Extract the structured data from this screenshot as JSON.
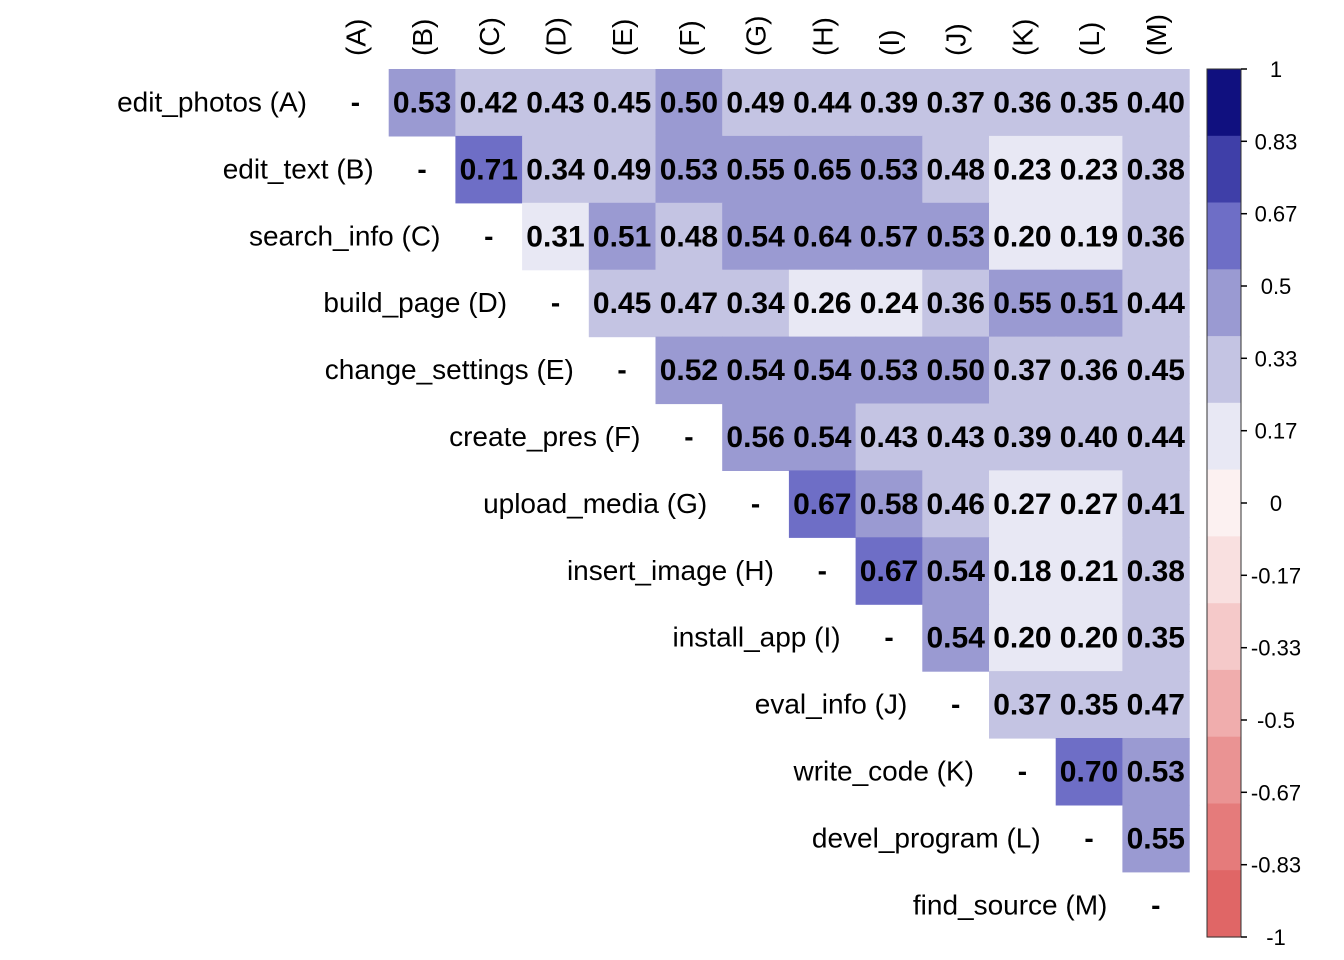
{
  "chart_data": {
    "type": "heatmap",
    "title": "",
    "row_labels": [
      "edit_photos (A)",
      "edit_text (B)",
      "search_info (C)",
      "build_page (D)",
      "change_settings (E)",
      "create_pres (F)",
      "upload_media (G)",
      "insert_image (H)",
      "install_app (I)",
      "eval_info (J)",
      "write_code (K)",
      "devel_program (L)",
      "find_source (M)"
    ],
    "col_labels": [
      "(A)",
      "(B)",
      "(C)",
      "(D)",
      "(E)",
      "(F)",
      "(G)",
      "(H)",
      "(I)",
      "(J)",
      "(K)",
      "(L)",
      "(M)"
    ],
    "diagonal_label": "-",
    "matrix": [
      [
        null,
        0.53,
        0.42,
        0.43,
        0.45,
        0.5,
        0.49,
        0.44,
        0.39,
        0.37,
        0.36,
        0.35,
        0.4
      ],
      [
        null,
        null,
        0.71,
        0.34,
        0.49,
        0.53,
        0.55,
        0.65,
        0.53,
        0.48,
        0.23,
        0.23,
        0.38
      ],
      [
        null,
        null,
        null,
        0.31,
        0.51,
        0.48,
        0.54,
        0.64,
        0.57,
        0.53,
        0.2,
        0.19,
        0.36
      ],
      [
        null,
        null,
        null,
        null,
        0.45,
        0.47,
        0.34,
        0.26,
        0.24,
        0.36,
        0.55,
        0.51,
        0.44
      ],
      [
        null,
        null,
        null,
        null,
        null,
        0.52,
        0.54,
        0.54,
        0.53,
        0.5,
        0.37,
        0.36,
        0.45
      ],
      [
        null,
        null,
        null,
        null,
        null,
        null,
        0.56,
        0.54,
        0.43,
        0.43,
        0.39,
        0.4,
        0.44
      ],
      [
        null,
        null,
        null,
        null,
        null,
        null,
        null,
        0.67,
        0.58,
        0.46,
        0.27,
        0.27,
        0.41
      ],
      [
        null,
        null,
        null,
        null,
        null,
        null,
        null,
        null,
        0.67,
        0.54,
        0.18,
        0.21,
        0.38
      ],
      [
        null,
        null,
        null,
        null,
        null,
        null,
        null,
        null,
        null,
        0.54,
        0.2,
        0.2,
        0.35
      ],
      [
        null,
        null,
        null,
        null,
        null,
        null,
        null,
        null,
        null,
        null,
        0.37,
        0.35,
        0.47
      ],
      [
        null,
        null,
        null,
        null,
        null,
        null,
        null,
        null,
        null,
        null,
        null,
        0.7,
        0.53
      ],
      [
        null,
        null,
        null,
        null,
        null,
        null,
        null,
        null,
        null,
        null,
        null,
        null,
        0.55
      ],
      [
        null,
        null,
        null,
        null,
        null,
        null,
        null,
        null,
        null,
        null,
        null,
        null,
        null
      ]
    ],
    "color_scale": {
      "min": -1,
      "max": 1,
      "breaks": [
        -1,
        -0.83,
        -0.67,
        -0.5,
        -0.33,
        -0.17,
        0,
        0.17,
        0.33,
        0.5,
        0.67,
        0.83,
        1
      ],
      "tick_labels": [
        "1",
        "0.83",
        "0.67",
        "0.5",
        "0.33",
        "0.17",
        "0",
        "-0.17",
        "-0.33",
        "-0.5",
        "-0.67",
        "-0.83",
        "-1"
      ],
      "bin_colors": [
        "#E06666",
        "#E57B7B",
        "#EA9393",
        "#F0ADAD",
        "#F5C9C9",
        "#F9E0E0",
        "#FCF1F1",
        "#E8E8F4",
        "#C4C4E3",
        "#9A9AD2",
        "#6E6EC6",
        "#3F3FA8",
        "#10107F"
      ],
      "legend_position": "right"
    }
  }
}
